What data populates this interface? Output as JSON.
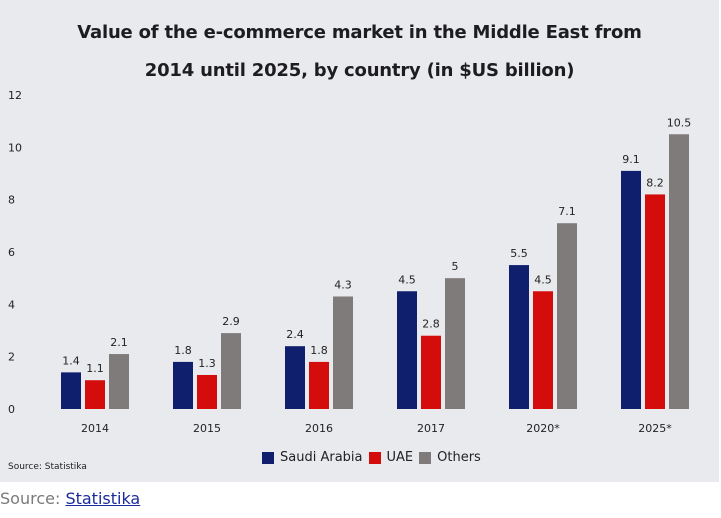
{
  "chart_data": {
    "type": "bar",
    "title_lines": [
      "Value of the e-commerce market in the Middle East from",
      "2014 until 2025, by country (in $US billion)"
    ],
    "categories": [
      "2014",
      "2015",
      "2016",
      "2017",
      "2020*",
      "2025*"
    ],
    "series": [
      {
        "name": "Saudi Arabia",
        "color": "#0f1f6e",
        "values": [
          1.4,
          1.8,
          2.4,
          4.5,
          5.5,
          9.1
        ]
      },
      {
        "name": "UAE",
        "color": "#d50c0c",
        "values": [
          1.1,
          1.3,
          1.8,
          2.8,
          4.5,
          8.2
        ]
      },
      {
        "name": "Others",
        "color": "#7f7b7b",
        "values": [
          2.1,
          2.9,
          4.3,
          5,
          7.1,
          10.5
        ]
      }
    ],
    "data_labels": [
      [
        "1.4",
        "1.8",
        "2.4",
        "4.5",
        "5.5",
        "9.1"
      ],
      [
        "1.1",
        "1.3",
        "1.8",
        "2.8",
        "4.5",
        "8.2"
      ],
      [
        "2.1",
        "2.9",
        "4.3",
        "5",
        "7.1",
        "10.5"
      ]
    ],
    "ylim": [
      0,
      12
    ],
    "yticks": [
      "0",
      "2",
      "4",
      "6",
      "8",
      "10",
      "12"
    ],
    "grid": false,
    "legend_position": "bottom-center"
  },
  "footer": {
    "source_small": "Source: Statistika",
    "source_prefix": "Source: ",
    "source_link": "Statistika"
  }
}
